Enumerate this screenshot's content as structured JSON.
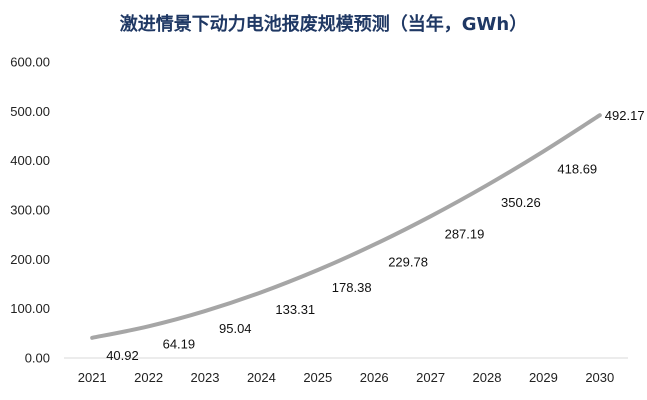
{
  "chart_data": {
    "type": "line",
    "title": "激进情景下动力电池报废规模预测（当年，GWh）",
    "xlabel": "",
    "ylabel": "",
    "categories": [
      "2021",
      "2022",
      "2023",
      "2024",
      "2025",
      "2026",
      "2027",
      "2028",
      "2029",
      "2030"
    ],
    "series": [
      {
        "values": [
          40.92,
          64.19,
          95.04,
          133.31,
          178.38,
          229.78,
          287.19,
          350.26,
          418.69,
          492.17
        ],
        "labels": [
          "40.92",
          "64.19",
          "95.04",
          "133.31",
          "178.38",
          "229.78",
          "287.19",
          "350.26",
          "418.69",
          "492.17"
        ]
      }
    ],
    "ylim": [
      0,
      600
    ],
    "yticks": [
      "0.00",
      "100.00",
      "200.00",
      "300.00",
      "400.00",
      "500.00",
      "600.00"
    ],
    "grid": false,
    "legend": "none",
    "colors": {
      "line": "#a6a6a6",
      "axis": "#d9d9d9",
      "title": "#1f3864"
    }
  }
}
